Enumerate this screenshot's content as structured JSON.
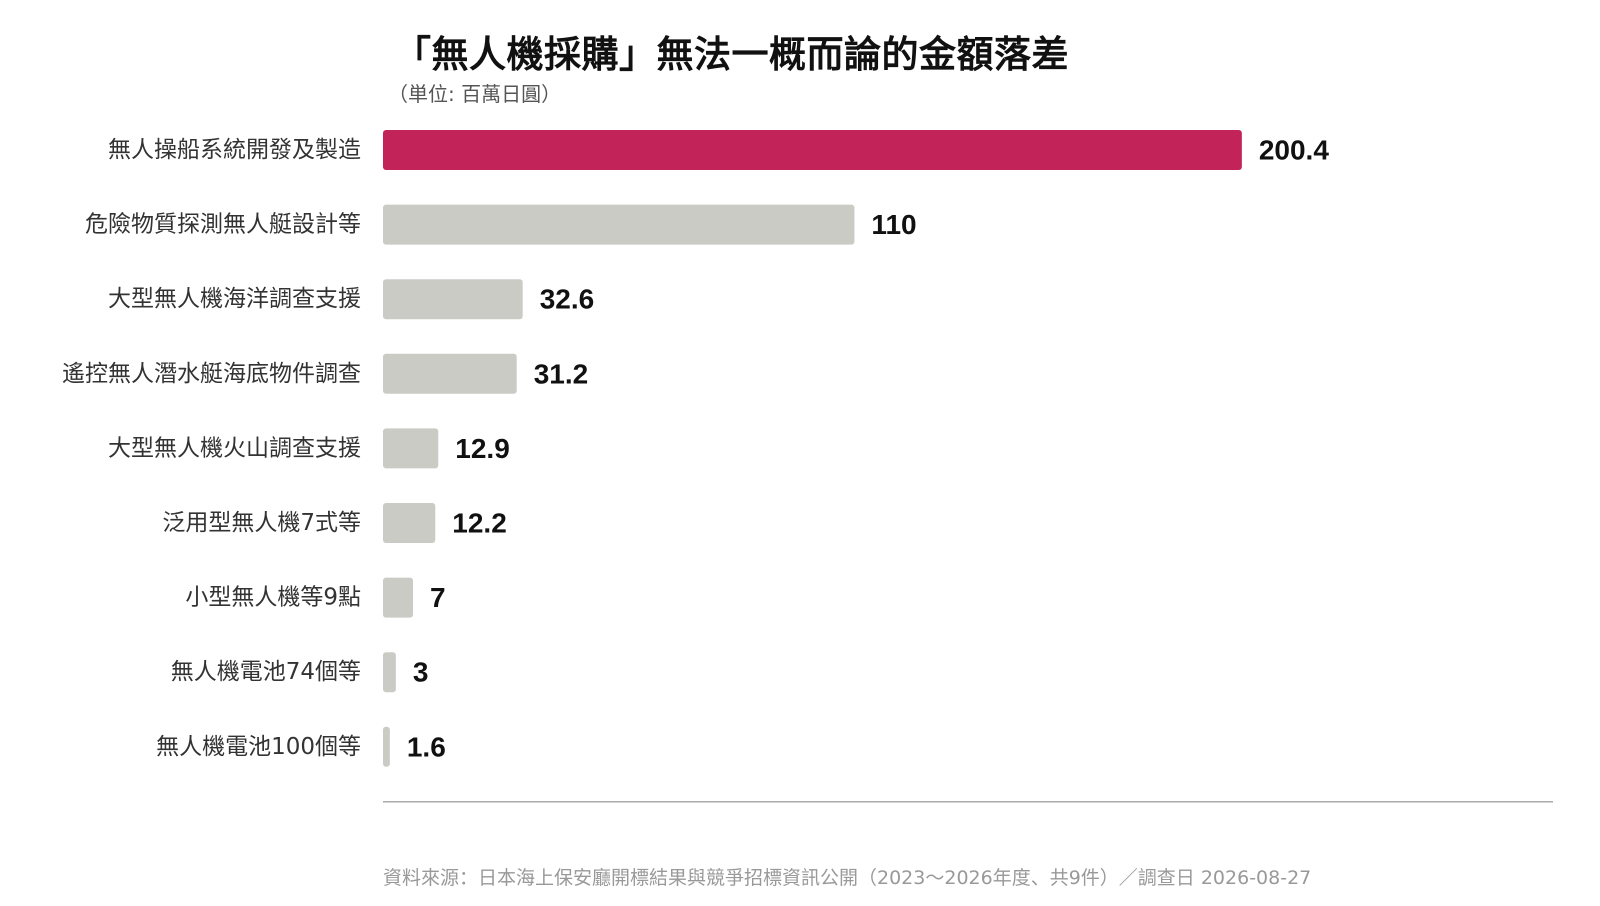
{
  "chart_data": {
    "type": "bar",
    "orientation": "horizontal",
    "title": "「無人機採購」無法一概而論的金額落差",
    "subtitle": "（単位: 百萬日圓）",
    "categories": [
      "無人操船系統開發及製造",
      "危險物質探測無人艇設計等",
      "大型無人機海洋調查支援",
      "遙控無人潛水艇海底物件調查",
      "大型無人機火山調查支援",
      "泛用型無人機7式等",
      "小型無人機等9點",
      "無人機電池74個等",
      "無人機電池100個等"
    ],
    "values": [
      200.4,
      110,
      32.6,
      31.2,
      12.9,
      12.2,
      7,
      3,
      1.6
    ],
    "value_labels": [
      "200.4",
      "110",
      "32.6",
      "31.2",
      "12.9",
      "12.2",
      "7",
      "3",
      "1.6"
    ],
    "xlim": [
      0,
      273
    ],
    "grid": false,
    "colors": {
      "highlight": "#C2245A",
      "default": "#CBCBC6",
      "baseline": "#AAAAAA"
    },
    "highlight_index": 0
  },
  "source": "資料來源：日本海上保安廳開標結果與競爭招標資訊公開（2023〜2026年度、共9件）／調查日 2026-08-27"
}
